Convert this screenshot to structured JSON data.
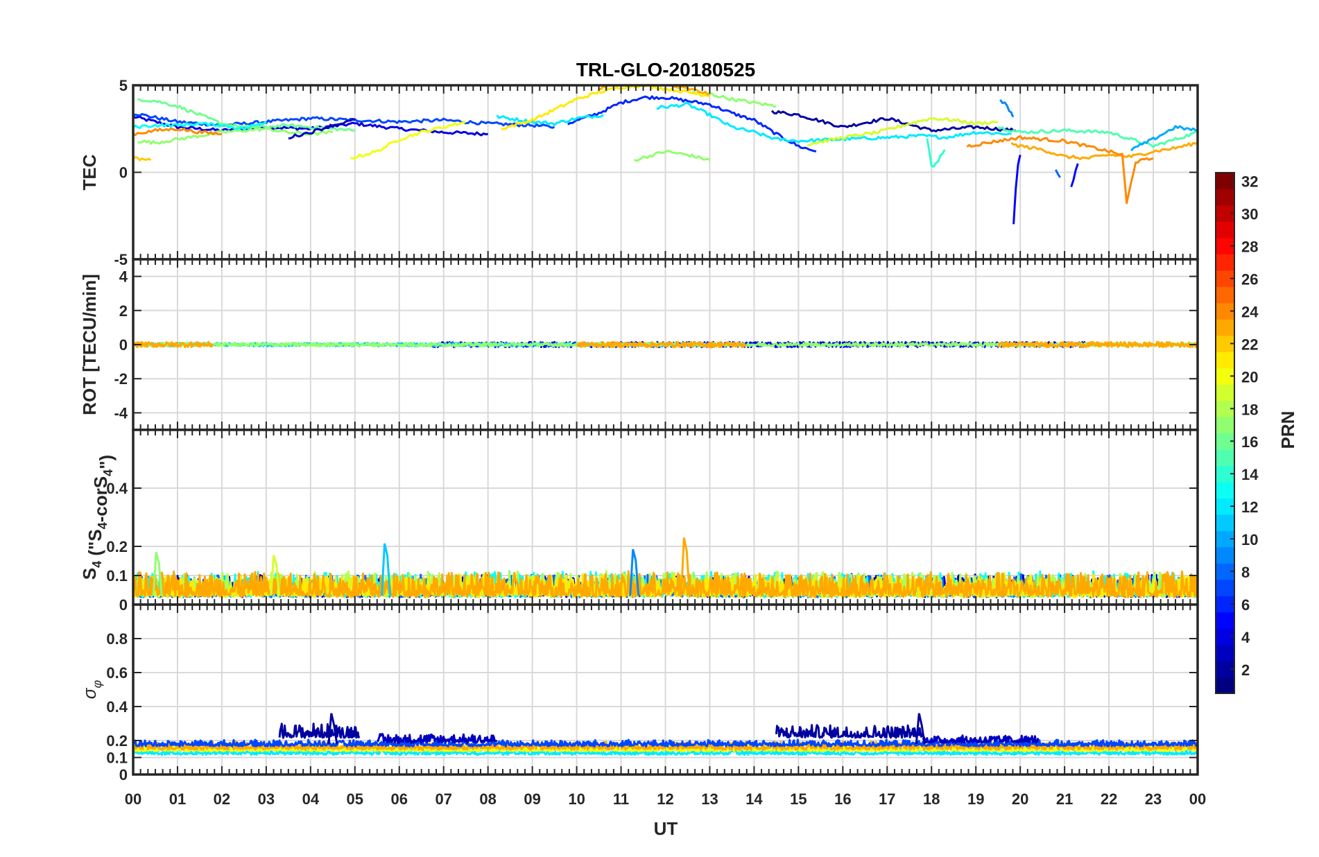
{
  "chart_data": {
    "type": "line",
    "title": "TRL-GLO-20180525",
    "xlabel": "UT",
    "x_tick_labels": [
      "00",
      "01",
      "02",
      "03",
      "04",
      "05",
      "06",
      "07",
      "08",
      "09",
      "10",
      "11",
      "12",
      "13",
      "14",
      "15",
      "16",
      "17",
      "18",
      "19",
      "20",
      "21",
      "22",
      "23",
      "00"
    ],
    "xlim": [
      0,
      24
    ],
    "grid": true,
    "colorbar": {
      "label": "PRN",
      "range": [
        1,
        32
      ],
      "colormap": "jet",
      "tick_labels": [
        "2",
        "4",
        "6",
        "8",
        "10",
        "12",
        "14",
        "16",
        "18",
        "20",
        "22",
        "24",
        "26",
        "28",
        "30",
        "32"
      ]
    },
    "panels": [
      {
        "id": "tec",
        "ylabel": "TEC",
        "ylim": [
          -5,
          5
        ],
        "y_ticks": [
          -5,
          0,
          5
        ],
        "y_tick_labels": [
          "-5",
          "0",
          "5"
        ],
        "series": [
          {
            "prn": 4,
            "x": [
              0,
              1,
              2,
              3,
              4,
              5,
              6,
              7,
              8
            ],
            "y": [
              3.2,
              2.6,
              2.4,
              2.6,
              2.5,
              2.8,
              2.5,
              2.3,
              2.2
            ]
          },
          {
            "prn": 7,
            "x": [
              0,
              1,
              2,
              3,
              4,
              5,
              6,
              7,
              8,
              9,
              9.5
            ],
            "y": [
              3.4,
              2.9,
              2.7,
              2.9,
              3.1,
              3.0,
              2.9,
              3.0,
              2.8,
              2.7,
              2.6
            ]
          },
          {
            "prn": 2,
            "x": [
              14.4,
              15,
              16,
              17,
              18,
              19,
              19.9
            ],
            "y": [
              3.5,
              3.3,
              2.6,
              3.1,
              2.4,
              2.6,
              2.4
            ]
          },
          {
            "prn": 6,
            "x": [
              9.8,
              10.5,
              11,
              11.5,
              12,
              12.5,
              13,
              13.5,
              14,
              14.5,
              15,
              15.4
            ],
            "y": [
              2.8,
              3.4,
              4.0,
              4.3,
              4.3,
              4.1,
              3.9,
              3.4,
              3.0,
              2.2,
              1.5,
              1.2
            ]
          },
          {
            "prn": 12,
            "x": [
              11.8,
              12.5,
              13,
              13.5,
              14,
              14.5,
              15,
              16,
              17,
              17.8,
              18.3,
              19,
              19.8
            ],
            "y": [
              3.7,
              3.9,
              3.3,
              2.6,
              2.3,
              1.9,
              1.8,
              1.9,
              2.0,
              2.1,
              2.0,
              2.3,
              2.2
            ]
          },
          {
            "prn": 12,
            "x": [
              8.2,
              9,
              9.5,
              10,
              10.6
            ],
            "y": [
              3.2,
              2.9,
              2.8,
              3.1,
              3.3
            ]
          },
          {
            "prn": 15,
            "x": [
              19.5,
              20,
              21,
              22,
              23,
              24
            ],
            "y": [
              2.6,
              2.3,
              2.4,
              2.3,
              1.5,
              2.3
            ]
          },
          {
            "prn": 16,
            "x": [
              0.1,
              0.5,
              1,
              1.5,
              2,
              2.5,
              3,
              3.5,
              4,
              4.5,
              5
            ],
            "y": [
              4.2,
              4.1,
              3.8,
              3.3,
              2.8,
              2.6,
              2.6,
              2.7,
              2.6,
              2.5,
              2.4
            ]
          },
          {
            "prn": 17,
            "x": [
              11.3,
              12,
              12.5,
              13
            ],
            "y": [
              0.7,
              1.2,
              1.0,
              0.7
            ]
          },
          {
            "prn": 17,
            "x": [
              12.6,
              13,
              13.5,
              14,
              14.5
            ],
            "y": [
              4.6,
              4.5,
              4.2,
              4.0,
              3.8
            ]
          },
          {
            "prn": 17,
            "x": [
              0.1,
              0.5,
              1,
              1.5,
              2,
              2.5,
              3,
              3.5,
              4,
              4.5
            ],
            "y": [
              1.8,
              1.7,
              1.9,
              2.1,
              2.3,
              2.4,
              2.5,
              2.3,
              2.2,
              2.3
            ]
          },
          {
            "prn": 20,
            "x": [
              4.9,
              5.5,
              6,
              6.5,
              7,
              7.5
            ],
            "y": [
              0.8,
              1.2,
              1.9,
              2.3,
              2.6,
              2.9
            ]
          },
          {
            "prn": 21,
            "x": [
              8.3,
              9,
              9.5,
              10,
              10.5,
              11,
              11.5,
              12,
              12.5,
              13
            ],
            "y": [
              2.5,
              3.0,
              3.6,
              4.2,
              4.6,
              4.9,
              5.0,
              4.8,
              4.6,
              4.4
            ]
          },
          {
            "prn": 19,
            "x": [
              15.2,
              16,
              16.8,
              17.5,
              18,
              18.5,
              19,
              19.5
            ],
            "y": [
              1.6,
              2.0,
              2.3,
              2.8,
              3.1,
              3.0,
              2.8,
              2.9
            ]
          },
          {
            "prn": 23,
            "x": [
              10.5,
              11,
              11.5,
              12,
              12.5,
              13
            ],
            "y": [
              4.8,
              5.2,
              5.3,
              5.0,
              4.8,
              4.5
            ]
          },
          {
            "prn": 23,
            "x": [
              19.8,
              20.5,
              21,
              21.5,
              22,
              22.5,
              23,
              23.5,
              24
            ],
            "y": [
              1.6,
              1.3,
              0.9,
              0.8,
              1.0,
              0.9,
              1.2,
              1.4,
              1.7
            ]
          },
          {
            "prn": 24,
            "x": [
              0,
              0.5,
              1,
              1.5,
              2
            ],
            "y": [
              2.2,
              2.4,
              2.5,
              2.3,
              2.2
            ]
          },
          {
            "prn": 24,
            "x": [
              18.8,
              19.5,
              20,
              20.5,
              21,
              21.5,
              22,
              22.3,
              22.4,
              22.6,
              23
            ],
            "y": [
              1.5,
              1.8,
              2.0,
              1.9,
              1.8,
              1.5,
              1.2,
              1.0,
              -1.8,
              0.6,
              0.8
            ]
          },
          {
            "prn": 9,
            "x": [
              19.55,
              19.7,
              19.8,
              19.85
            ],
            "y": [
              4.2,
              3.8,
              3.4,
              3.2
            ]
          },
          {
            "prn": 5,
            "x": [
              19.85,
              19.9,
              19.95,
              20.0
            ],
            "y": [
              -3.0,
              -1.0,
              0.5,
              1.0
            ]
          },
          {
            "prn": 5,
            "x": [
              21.15,
              21.3
            ],
            "y": [
              -0.8,
              0.5
            ]
          },
          {
            "prn": 8,
            "x": [
              20.8,
              20.9
            ],
            "y": [
              0.2,
              -0.3
            ]
          },
          {
            "prn": 14,
            "x": [
              17.9,
              18,
              18.1,
              18.3
            ],
            "y": [
              2.0,
              0.3,
              0.5,
              1.3
            ]
          },
          {
            "prn": 22,
            "x": [
              0,
              0.4
            ],
            "y": [
              0.8,
              0.7
            ]
          },
          {
            "prn": 3,
            "x": [
              3.5,
              4,
              4.5,
              5
            ],
            "y": [
              2.0,
              2.3,
              2.7,
              3.0
            ]
          },
          {
            "prn": 10,
            "x": [
              22.5,
              23,
              23.5,
              24
            ],
            "y": [
              1.3,
              1.9,
              2.6,
              2.4
            ]
          },
          {
            "prn": 13,
            "x": [
              0,
              0.5,
              1,
              1.5,
              2,
              2.5,
              3
            ],
            "y": [
              2.6,
              2.7,
              2.7,
              2.8,
              2.7,
              2.5,
              2.9
            ]
          }
        ]
      },
      {
        "id": "rot",
        "ylabel": "ROT [TECU/min]",
        "ylim": [
          -5,
          5
        ],
        "y_ticks": [
          -4,
          -2,
          0,
          2,
          4
        ],
        "y_tick_labels": [
          "-4",
          "-2",
          "0",
          "2",
          "4"
        ],
        "series": [
          {
            "prn": 4,
            "x_range": [
              6.7,
              21.5
            ],
            "level": 0.0,
            "amplitude": 0.15
          },
          {
            "prn": 11,
            "x_range": [
              0,
              13
            ],
            "level": 0.0,
            "amplitude": 0.1
          },
          {
            "prn": 17,
            "x_range": [
              0,
              24
            ],
            "level": 0.0,
            "amplitude": 0.1
          },
          {
            "prn": 23,
            "x_range": [
              0,
              1.8
            ],
            "level": 0.0,
            "amplitude": 0.15
          },
          {
            "prn": 23,
            "x_range": [
              10,
              13.8
            ],
            "level": 0.0,
            "amplitude": 0.15
          },
          {
            "prn": 23,
            "x_range": [
              19.5,
              24
            ],
            "level": 0.0,
            "amplitude": 0.15
          }
        ]
      },
      {
        "id": "s4",
        "ylabel": "S4 (\"S4-corS4\")",
        "ylim": [
          0,
          0.6
        ],
        "y_ticks": [
          0,
          0.1,
          0.2,
          0.4
        ],
        "y_tick_labels": [
          "0",
          "0.1",
          "0.2",
          "0.4"
        ],
        "series": [
          {
            "prn": 3,
            "x_range": [
              0,
              24
            ],
            "level": 0.03,
            "amplitude": 0.07
          },
          {
            "prn": 8,
            "x_range": [
              0,
              24
            ],
            "level": 0.03,
            "amplitude": 0.07
          },
          {
            "prn": 13,
            "x_range": [
              0,
              24
            ],
            "level": 0.03,
            "amplitude": 0.08
          },
          {
            "prn": 18,
            "x_range": [
              0,
              24
            ],
            "level": 0.03,
            "amplitude": 0.08
          },
          {
            "prn": 21,
            "x_range": [
              0,
              24
            ],
            "level": 0.03,
            "amplitude": 0.07
          },
          {
            "prn": 23,
            "x_range": [
              0,
              24
            ],
            "level": 0.03,
            "amplitude": 0.08
          }
        ],
        "peaks": [
          {
            "x": 0.55,
            "y": 0.18,
            "prn": 17
          },
          {
            "x": 5.7,
            "y": 0.21,
            "prn": 11
          },
          {
            "x": 11.3,
            "y": 0.19,
            "prn": 9
          },
          {
            "x": 12.45,
            "y": 0.23,
            "prn": 23
          },
          {
            "x": 3.2,
            "y": 0.17,
            "prn": 19
          }
        ]
      },
      {
        "id": "sigma",
        "ylabel": "σφ",
        "ylim": [
          0,
          1
        ],
        "y_ticks": [
          0,
          0.1,
          0.2,
          0.4,
          0.6,
          0.8
        ],
        "y_tick_labels": [
          "0",
          "0.1",
          "0.2",
          "0.4",
          "0.6",
          "0.8"
        ],
        "series": [
          {
            "prn": 12,
            "x_range": [
              0,
              24
            ],
            "level": 0.12,
            "amplitude": 0.02
          },
          {
            "prn": 17,
            "x_range": [
              0,
              24
            ],
            "level": 0.14,
            "amplitude": 0.03
          },
          {
            "prn": 20,
            "x_range": [
              0,
              24
            ],
            "level": 0.14,
            "amplitude": 0.03
          },
          {
            "prn": 23,
            "x_range": [
              0,
              24
            ],
            "level": 0.15,
            "amplitude": 0.04
          },
          {
            "prn": 7,
            "x_range": [
              0,
              24
            ],
            "level": 0.17,
            "amplitude": 0.03
          },
          {
            "prn": 2,
            "x_range": [
              3.3,
              5.1
            ],
            "level": 0.22,
            "amplitude": 0.08
          },
          {
            "prn": 3,
            "x_range": [
              5.5,
              8.2
            ],
            "level": 0.19,
            "amplitude": 0.05
          },
          {
            "prn": 2,
            "x_range": [
              14.5,
              17.8
            ],
            "level": 0.22,
            "amplitude": 0.07
          },
          {
            "prn": 3,
            "x_range": [
              17.8,
              20.4
            ],
            "level": 0.19,
            "amplitude": 0.04
          }
        ],
        "peaks": [
          {
            "x": 4.5,
            "y": 0.36,
            "prn": 2
          },
          {
            "x": 17.75,
            "y": 0.36,
            "prn": 2
          }
        ]
      }
    ]
  }
}
